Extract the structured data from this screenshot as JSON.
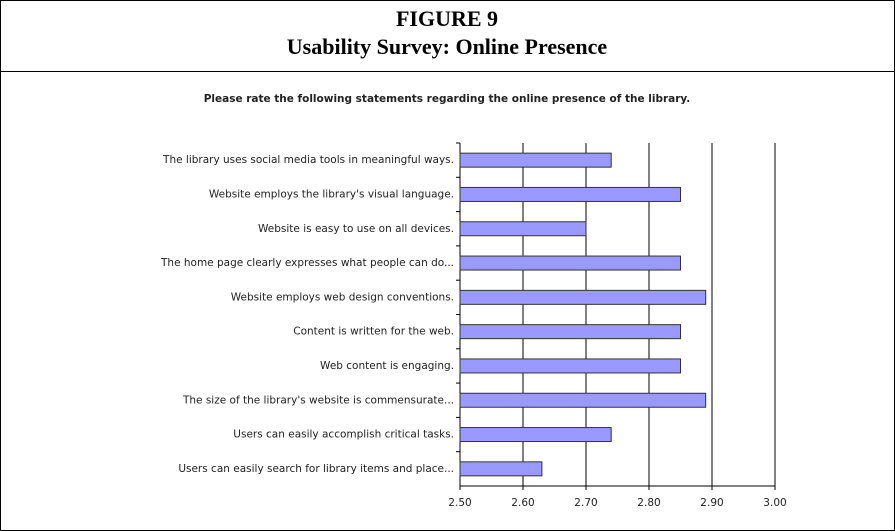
{
  "figure": {
    "label": "FIGURE 9",
    "title": "Usability Survey: Online Presence"
  },
  "chart_data": {
    "type": "barh",
    "title": "Please rate the following statements regarding the online presence of the library.",
    "categories": [
      "The library uses social media tools in meaningful ways.",
      "Website employs the library's visual language.",
      "Website is easy to use on all devices.",
      "The home page clearly expresses what people can do...",
      "Website employs web design conventions.",
      "Content is written for the web.",
      "Web content is engaging.",
      "The size of the library's website is commensurate...",
      "Users can easily accomplish critical tasks.",
      "Users can easily search for library items and place..."
    ],
    "values": [
      2.74,
      2.85,
      2.7,
      2.85,
      2.89,
      2.85,
      2.85,
      2.89,
      2.74,
      2.63
    ],
    "color": "#9999ff",
    "xlim": [
      2.5,
      3.0
    ],
    "xticks": [
      {
        "value": 2.5,
        "label": "2.50"
      },
      {
        "value": 2.6,
        "label": "2.60"
      },
      {
        "value": 2.7,
        "label": "2.70"
      },
      {
        "value": 2.8,
        "label": "2.80"
      },
      {
        "value": 2.9,
        "label": "2.90"
      },
      {
        "value": 3.0,
        "label": "3.00"
      }
    ],
    "grid": true
  }
}
